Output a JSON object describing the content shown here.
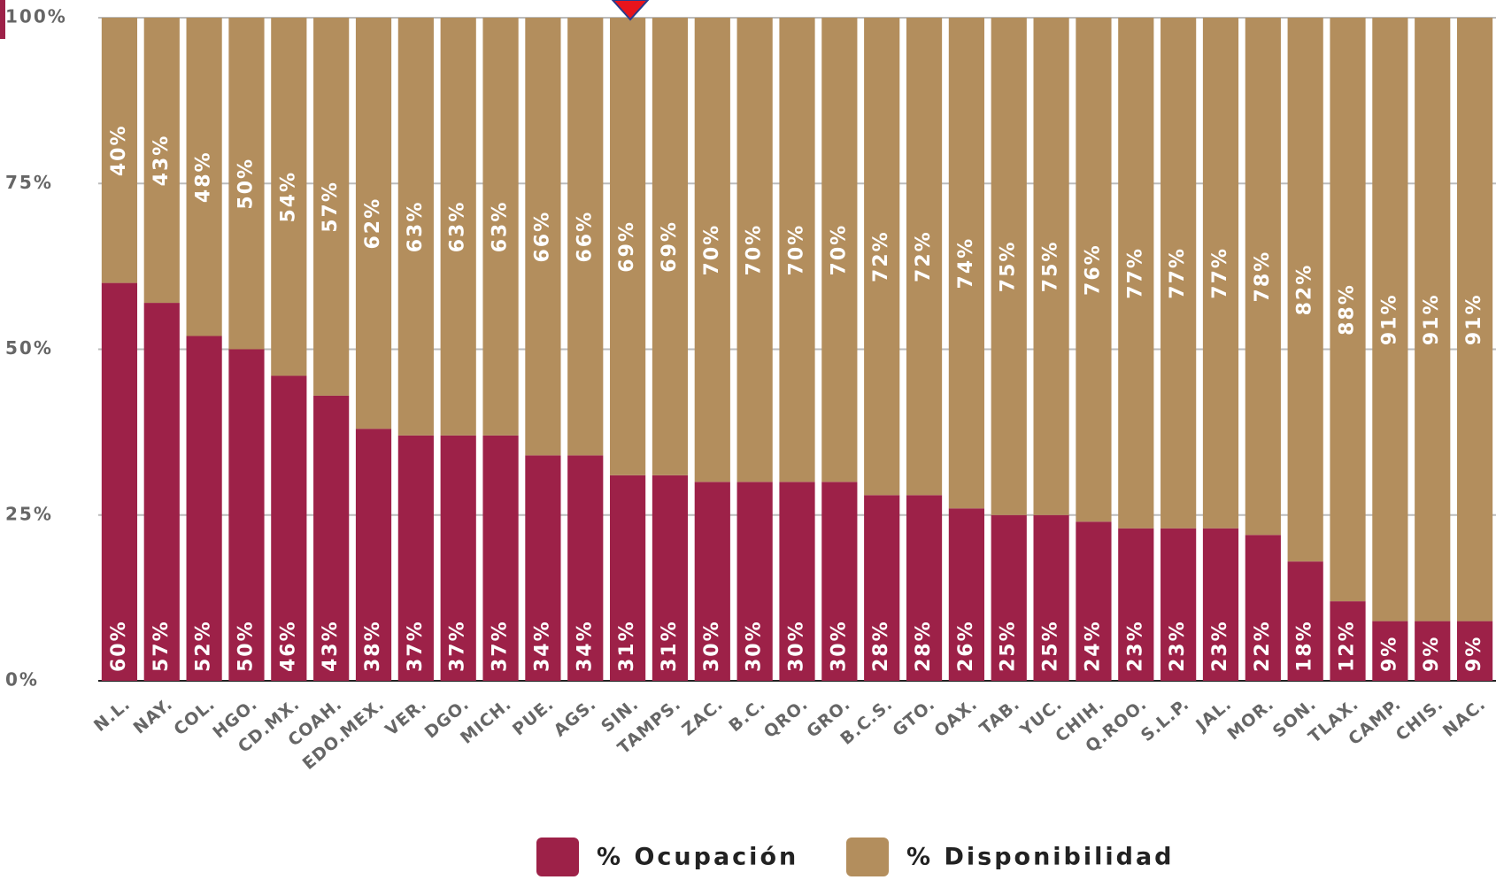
{
  "chart_data": {
    "type": "stacked_bar",
    "categories": [
      "N.L.",
      "NAY.",
      "COL.",
      "HGO.",
      "CD.MX.",
      "COAH.",
      "EDO.MEX.",
      "VER.",
      "DGO.",
      "MICH.",
      "PUE.",
      "AGS.",
      "SIN.",
      "TAMPS.",
      "ZAC.",
      "B.C.",
      "QRO.",
      "GRO.",
      "B.C.S.",
      "GTO.",
      "OAX.",
      "TAB.",
      "YUC.",
      "CHIH.",
      "Q.ROO.",
      "S.L.P.",
      "JAL.",
      "MOR.",
      "SON.",
      "TLAX.",
      "CAMP.",
      "CHIS.",
      "NAC."
    ],
    "series": [
      {
        "name": "% Ocupación",
        "color": "#9d2148",
        "values": [
          60,
          57,
          52,
          50,
          46,
          43,
          38,
          37,
          37,
          37,
          34,
          34,
          31,
          31,
          30,
          30,
          30,
          30,
          28,
          28,
          26,
          25,
          25,
          24,
          23,
          23,
          23,
          22,
          18,
          12,
          9,
          9,
          9
        ],
        "value_labels": [
          "60%",
          "57%",
          "52%",
          "50%",
          "46%",
          "43%",
          "38%",
          "37%",
          "37%",
          "37%",
          "34%",
          "34%",
          "31%",
          "31%",
          "30%",
          "30%",
          "30%",
          "30%",
          "28%",
          "28%",
          "26%",
          "25%",
          "25%",
          "24%",
          "23%",
          "23%",
          "23%",
          "22%",
          "18%",
          "12%",
          "9%",
          "9%",
          "9%"
        ]
      },
      {
        "name": "% Disponibilidad",
        "color": "#b38e5d",
        "values": [
          40,
          43,
          48,
          50,
          54,
          57,
          62,
          63,
          63,
          63,
          66,
          66,
          69,
          69,
          70,
          70,
          70,
          70,
          72,
          72,
          74,
          75,
          75,
          76,
          77,
          77,
          77,
          78,
          82,
          88,
          91,
          91,
          91
        ],
        "value_labels": [
          "40%",
          "43%",
          "48%",
          "50%",
          "54%",
          "57%",
          "62%",
          "63%",
          "63%",
          "63%",
          "66%",
          "66%",
          "69%",
          "69%",
          "70%",
          "70%",
          "70%",
          "70%",
          "72%",
          "72%",
          "74%",
          "75%",
          "75%",
          "76%",
          "77%",
          "77%",
          "77%",
          "78%",
          "82%",
          "88%",
          "91%",
          "91%",
          "91%"
        ]
      }
    ],
    "ylim": [
      0,
      100
    ],
    "yticks": [
      {
        "value": 0,
        "label": "0%"
      },
      {
        "value": 25,
        "label": "25%"
      },
      {
        "value": 50,
        "label": "50%"
      },
      {
        "value": 75,
        "label": "75%"
      },
      {
        "value": 100,
        "label": "100%"
      }
    ],
    "grid": true
  }
}
